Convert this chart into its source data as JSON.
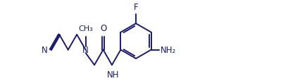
{
  "line_color": "#1a1a6e",
  "text_color": "#1a1a6e",
  "bg_color": "#ffffff",
  "line_width": 1.4,
  "font_size": 8.5,
  "fig_width": 4.1,
  "fig_height": 1.16,
  "dpi": 100,
  "xlim": [
    -0.3,
    8.5
  ],
  "ylim": [
    0.0,
    3.2
  ]
}
